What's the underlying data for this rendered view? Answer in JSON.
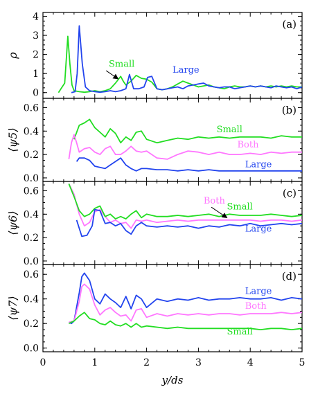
{
  "chart_data": [
    {
      "type": "line",
      "panel_label": "(a)",
      "ylabel": "ρ",
      "xlabel": "",
      "xlim": [
        0,
        5
      ],
      "ylim": [
        -0.3,
        4.2
      ],
      "yticks": [
        0,
        1,
        2,
        3,
        4
      ],
      "ytick_labels": [
        "0",
        "1",
        "2",
        "3",
        "4"
      ],
      "series": [
        {
          "name": "Small",
          "color": "#22dd22",
          "x": [
            0.3,
            0.42,
            0.48,
            0.52,
            0.56,
            0.6,
            0.7,
            0.8,
            0.9,
            1.0,
            1.1,
            1.2,
            1.3,
            1.4,
            1.5,
            1.55,
            1.6,
            1.7,
            1.8,
            1.9,
            2.0,
            2.1,
            2.2,
            2.3,
            2.4,
            2.5,
            2.6,
            2.7,
            2.8,
            2.9,
            3.0,
            3.1,
            3.2,
            3.3,
            3.4,
            3.5,
            3.6,
            3.7,
            3.8,
            3.9,
            4.0,
            4.1,
            4.2,
            4.3,
            4.4,
            4.5,
            4.6,
            4.7,
            4.8,
            4.9,
            5.0
          ],
          "values": [
            0,
            0.5,
            2.95,
            1.5,
            0.4,
            0.1,
            0.05,
            0.02,
            0.05,
            0.1,
            0.05,
            0.1,
            0.2,
            0.5,
            0.85,
            0.6,
            0.4,
            0.6,
            0.9,
            0.75,
            0.7,
            0.55,
            0.2,
            0.15,
            0.2,
            0.3,
            0.45,
            0.6,
            0.5,
            0.4,
            0.3,
            0.35,
            0.4,
            0.3,
            0.25,
            0.2,
            0.3,
            0.35,
            0.3,
            0.3,
            0.35,
            0.3,
            0.35,
            0.3,
            0.35,
            0.3,
            0.35,
            0.3,
            0.35,
            0.3,
            0.3
          ]
        },
        {
          "name": "Large",
          "color": "#2244ee",
          "x": [
            0.55,
            0.62,
            0.66,
            0.7,
            0.76,
            0.82,
            0.9,
            1.0,
            1.1,
            1.2,
            1.3,
            1.4,
            1.5,
            1.6,
            1.67,
            1.75,
            1.85,
            1.95,
            2.02,
            2.1,
            2.2,
            2.3,
            2.4,
            2.5,
            2.6,
            2.7,
            2.8,
            2.9,
            3.0,
            3.1,
            3.2,
            3.3,
            3.4,
            3.5,
            3.6,
            3.7,
            3.8,
            3.9,
            4.0,
            4.1,
            4.2,
            4.3,
            4.4,
            4.5,
            4.6,
            4.7,
            4.8,
            4.9,
            5.0
          ],
          "values": [
            0,
            0.05,
            1.0,
            3.5,
            1.5,
            0.3,
            0.1,
            0.05,
            0.02,
            0.05,
            0.1,
            0.05,
            0.1,
            0.2,
            0.95,
            0.2,
            0.2,
            0.3,
            0.8,
            0.85,
            0.2,
            0.15,
            0.2,
            0.25,
            0.3,
            0.2,
            0.35,
            0.4,
            0.45,
            0.5,
            0.35,
            0.3,
            0.25,
            0.3,
            0.3,
            0.2,
            0.25,
            0.3,
            0.35,
            0.3,
            0.35,
            0.3,
            0.25,
            0.35,
            0.3,
            0.25,
            0.3,
            0.2,
            0.3
          ]
        }
      ],
      "annotations": [
        {
          "text": "Small",
          "color": "#22dd22",
          "x": 1.27,
          "y": 1.35
        },
        {
          "text": "Large",
          "color": "#2244ee",
          "x": 2.5,
          "y": 1.05
        }
      ]
    },
    {
      "type": "line",
      "panel_label": "(b)",
      "ylabel": "⟨ψ5⟩",
      "xlabel": "",
      "xlim": [
        0,
        5
      ],
      "ylim": [
        -0.03,
        0.68
      ],
      "yticks": [
        0,
        0.2,
        0.4,
        0.6
      ],
      "ytick_labels": [
        "0.0",
        "0.2",
        "0.4",
        "0.6"
      ],
      "series": [
        {
          "name": "Small",
          "color": "#22dd22",
          "x": [
            0.6,
            0.7,
            0.8,
            0.9,
            1.0,
            1.1,
            1.2,
            1.3,
            1.4,
            1.5,
            1.6,
            1.7,
            1.8,
            1.9,
            2.0,
            2.2,
            2.4,
            2.6,
            2.8,
            3.0,
            3.2,
            3.4,
            3.6,
            3.8,
            4.0,
            4.2,
            4.4,
            4.6,
            4.8,
            5.0
          ],
          "values": [
            0.33,
            0.45,
            0.47,
            0.5,
            0.43,
            0.39,
            0.35,
            0.42,
            0.38,
            0.3,
            0.35,
            0.32,
            0.39,
            0.4,
            0.33,
            0.3,
            0.32,
            0.34,
            0.33,
            0.35,
            0.34,
            0.35,
            0.34,
            0.35,
            0.35,
            0.35,
            0.34,
            0.36,
            0.35,
            0.35
          ]
        },
        {
          "name": "Both",
          "color": "#ff77ff",
          "x": [
            0.5,
            0.55,
            0.6,
            0.65,
            0.7,
            0.8,
            0.9,
            1.0,
            1.1,
            1.2,
            1.3,
            1.4,
            1.5,
            1.6,
            1.7,
            1.8,
            1.9,
            2.0,
            2.2,
            2.4,
            2.6,
            2.8,
            3.0,
            3.2,
            3.4,
            3.6,
            3.8,
            4.0,
            4.2,
            4.4,
            4.6,
            4.8,
            5.0
          ],
          "values": [
            0.16,
            0.3,
            0.37,
            0.3,
            0.22,
            0.25,
            0.26,
            0.22,
            0.2,
            0.25,
            0.27,
            0.2,
            0.2,
            0.23,
            0.27,
            0.23,
            0.22,
            0.23,
            0.17,
            0.16,
            0.2,
            0.23,
            0.22,
            0.2,
            0.22,
            0.2,
            0.2,
            0.21,
            0.2,
            0.22,
            0.21,
            0.22,
            0.22
          ]
        },
        {
          "name": "Large",
          "color": "#2244ee",
          "x": [
            0.65,
            0.7,
            0.8,
            0.9,
            1.0,
            1.1,
            1.2,
            1.3,
            1.4,
            1.5,
            1.6,
            1.7,
            1.8,
            1.9,
            2.0,
            2.2,
            2.4,
            2.6,
            2.8,
            3.0,
            3.2,
            3.4,
            3.6,
            3.8,
            4.0,
            4.2,
            4.4,
            4.6,
            4.8,
            5.0
          ],
          "values": [
            0.14,
            0.17,
            0.17,
            0.15,
            0.1,
            0.09,
            0.08,
            0.11,
            0.14,
            0.17,
            0.11,
            0.08,
            0.06,
            0.08,
            0.08,
            0.07,
            0.07,
            0.06,
            0.07,
            0.06,
            0.07,
            0.06,
            0.06,
            0.06,
            0.06,
            0.06,
            0.06,
            0.06,
            0.06,
            0.06
          ]
        }
      ],
      "annotations": [
        {
          "text": "Small",
          "color": "#22dd22",
          "x": 3.35,
          "y": 0.39
        },
        {
          "text": "Both",
          "color": "#ff77ff",
          "x": 3.75,
          "y": 0.26
        },
        {
          "text": "Large",
          "color": "#2244ee",
          "x": 3.9,
          "y": 0.09
        }
      ]
    },
    {
      "type": "line",
      "panel_label": "(c)",
      "ylabel": "⟨ψ6⟩",
      "xlabel": "",
      "xlim": [
        0,
        5
      ],
      "ylim": [
        -0.03,
        0.68
      ],
      "yticks": [
        0,
        0.2,
        0.4,
        0.6
      ],
      "ytick_labels": [
        "0.0",
        "0.2",
        "0.4",
        "0.6"
      ],
      "series": [
        {
          "name": "Both",
          "color": "#ff77ff",
          "x": [
            0.5,
            0.6,
            0.7,
            0.8,
            0.9,
            1.0,
            1.1,
            1.2,
            1.3,
            1.4,
            1.5,
            1.6,
            1.7,
            1.8,
            1.9,
            2.0,
            2.2,
            2.4,
            2.6,
            2.8,
            3.0,
            3.2,
            3.4,
            3.6,
            3.8,
            4.0,
            4.2,
            4.4,
            4.6,
            4.8,
            5.0
          ],
          "values": [
            0.66,
            0.57,
            0.4,
            0.3,
            0.33,
            0.42,
            0.44,
            0.38,
            0.33,
            0.35,
            0.32,
            0.33,
            0.28,
            0.35,
            0.34,
            0.35,
            0.33,
            0.34,
            0.35,
            0.34,
            0.35,
            0.35,
            0.35,
            0.35,
            0.35,
            0.35,
            0.34,
            0.35,
            0.35,
            0.34,
            0.35
          ]
        },
        {
          "name": "Small",
          "color": "#22dd22",
          "x": [
            0.5,
            0.6,
            0.7,
            0.8,
            0.9,
            1.0,
            1.1,
            1.2,
            1.3,
            1.4,
            1.5,
            1.6,
            1.7,
            1.8,
            1.9,
            2.0,
            2.2,
            2.4,
            2.6,
            2.8,
            3.0,
            3.2,
            3.4,
            3.6,
            3.8,
            4.0,
            4.2,
            4.4,
            4.6,
            4.8,
            5.0
          ],
          "values": [
            0.66,
            0.55,
            0.43,
            0.38,
            0.4,
            0.45,
            0.47,
            0.38,
            0.4,
            0.36,
            0.38,
            0.36,
            0.4,
            0.43,
            0.37,
            0.4,
            0.38,
            0.38,
            0.39,
            0.38,
            0.39,
            0.4,
            0.38,
            0.4,
            0.39,
            0.39,
            0.39,
            0.4,
            0.39,
            0.38,
            0.39
          ]
        },
        {
          "name": "Large",
          "color": "#2244ee",
          "x": [
            0.65,
            0.75,
            0.85,
            0.95,
            1.0,
            1.1,
            1.2,
            1.3,
            1.4,
            1.5,
            1.6,
            1.7,
            1.8,
            1.9,
            2.0,
            2.2,
            2.4,
            2.6,
            2.8,
            3.0,
            3.2,
            3.4,
            3.6,
            3.8,
            4.0,
            4.2,
            4.4,
            4.6,
            4.8,
            5.0
          ],
          "values": [
            0.35,
            0.21,
            0.22,
            0.3,
            0.44,
            0.43,
            0.32,
            0.33,
            0.3,
            0.32,
            0.26,
            0.23,
            0.3,
            0.33,
            0.3,
            0.29,
            0.3,
            0.29,
            0.3,
            0.28,
            0.3,
            0.29,
            0.31,
            0.3,
            0.32,
            0.3,
            0.31,
            0.32,
            0.31,
            0.32
          ]
        }
      ],
      "annotations": [
        {
          "text": "Both",
          "color": "#ff77ff",
          "x": 3.1,
          "y": 0.49
        },
        {
          "text": "Small",
          "color": "#22dd22",
          "x": 3.55,
          "y": 0.44
        },
        {
          "text": "Large",
          "color": "#2244ee",
          "x": 3.9,
          "y": 0.25
        }
      ]
    },
    {
      "type": "line",
      "panel_label": "(d)",
      "ylabel": "⟨ψ7⟩",
      "xlabel": "y/ds",
      "xlim": [
        0,
        5
      ],
      "ylim": [
        -0.03,
        0.68
      ],
      "yticks": [
        0,
        0.2,
        0.4,
        0.6
      ],
      "ytick_labels": [
        "0.0",
        "0.2",
        "0.4",
        "0.6"
      ],
      "xticks": [
        0,
        1,
        2,
        3,
        4,
        5
      ],
      "xtick_labels": [
        "0",
        "1",
        "2",
        "3",
        "4",
        "5"
      ],
      "series": [
        {
          "name": "Large",
          "color": "#2244ee",
          "x": [
            0.5,
            0.55,
            0.6,
            0.7,
            0.75,
            0.8,
            0.9,
            1.0,
            1.1,
            1.2,
            1.3,
            1.4,
            1.5,
            1.6,
            1.7,
            1.8,
            1.9,
            2.0,
            2.2,
            2.4,
            2.6,
            2.8,
            3.0,
            3.2,
            3.4,
            3.6,
            3.8,
            4.0,
            4.2,
            4.4,
            4.6,
            4.8,
            5.0
          ],
          "values": [
            0.21,
            0.2,
            0.22,
            0.45,
            0.58,
            0.61,
            0.55,
            0.4,
            0.36,
            0.44,
            0.4,
            0.37,
            0.33,
            0.42,
            0.32,
            0.43,
            0.4,
            0.33,
            0.4,
            0.38,
            0.4,
            0.39,
            0.41,
            0.39,
            0.4,
            0.4,
            0.41,
            0.4,
            0.4,
            0.41,
            0.39,
            0.41,
            0.4
          ]
        },
        {
          "name": "Both",
          "color": "#ff77ff",
          "x": [
            0.5,
            0.6,
            0.7,
            0.75,
            0.8,
            0.9,
            1.0,
            1.1,
            1.2,
            1.3,
            1.4,
            1.5,
            1.6,
            1.7,
            1.8,
            1.9,
            2.0,
            2.2,
            2.4,
            2.6,
            2.8,
            3.0,
            3.2,
            3.4,
            3.6,
            3.8,
            4.0,
            4.2,
            4.4,
            4.6,
            4.8,
            5.0
          ],
          "values": [
            0.21,
            0.22,
            0.38,
            0.5,
            0.52,
            0.48,
            0.35,
            0.27,
            0.31,
            0.33,
            0.29,
            0.26,
            0.27,
            0.22,
            0.31,
            0.32,
            0.25,
            0.28,
            0.26,
            0.28,
            0.27,
            0.28,
            0.27,
            0.28,
            0.28,
            0.27,
            0.28,
            0.28,
            0.28,
            0.29,
            0.28,
            0.29
          ]
        },
        {
          "name": "Small",
          "color": "#22dd22",
          "x": [
            0.5,
            0.6,
            0.7,
            0.8,
            0.9,
            1.0,
            1.1,
            1.2,
            1.3,
            1.4,
            1.5,
            1.6,
            1.7,
            1.8,
            1.9,
            2.0,
            2.2,
            2.4,
            2.6,
            2.8,
            3.0,
            3.2,
            3.4,
            3.6,
            3.8,
            4.0,
            4.2,
            4.4,
            4.6,
            4.8,
            5.0
          ],
          "values": [
            0.2,
            0.22,
            0.26,
            0.29,
            0.24,
            0.23,
            0.2,
            0.19,
            0.22,
            0.19,
            0.18,
            0.2,
            0.17,
            0.2,
            0.17,
            0.18,
            0.17,
            0.16,
            0.17,
            0.16,
            0.16,
            0.16,
            0.16,
            0.16,
            0.16,
            0.16,
            0.15,
            0.16,
            0.16,
            0.15,
            0.16
          ]
        }
      ],
      "annotations": [
        {
          "text": "Large",
          "color": "#2244ee",
          "x": 3.9,
          "y": 0.44
        },
        {
          "text": "Both",
          "color": "#ff77ff",
          "x": 3.9,
          "y": 0.32
        },
        {
          "text": "Small",
          "color": "#22dd22",
          "x": 3.55,
          "y": 0.11
        }
      ]
    }
  ],
  "arrows": [
    {
      "panel": 0,
      "color": "#000000",
      "from": [
        1.22,
        1.15
      ],
      "to": [
        1.45,
        0.72
      ]
    },
    {
      "panel": 2,
      "color": "#000000",
      "from": [
        3.25,
        0.46
      ],
      "to": [
        3.55,
        0.37
      ]
    }
  ]
}
